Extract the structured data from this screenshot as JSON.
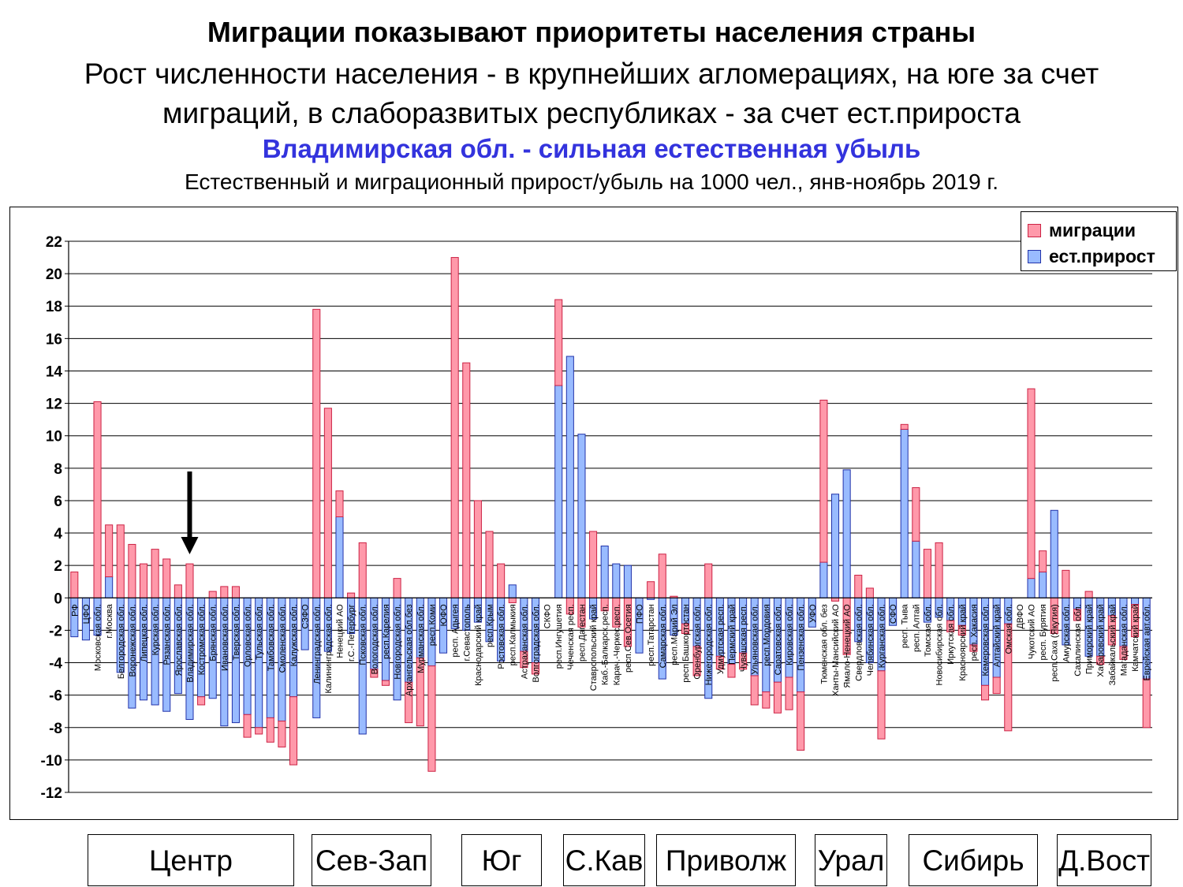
{
  "header": {
    "title": "Миграции показывают приоритеты населения страны",
    "subtitle_line1": "Рост численности населения - в крупнейших агломерациях, на юге за счет",
    "subtitle_line2": "миграций, в слаборазвитых республиках - за счет ест.прироста",
    "highlight": "Владимирская обл. - сильная естественная убыль",
    "caption": "Естественный и миграционный прирост/убыль на 1000 чел., янв-ноябрь 2019 г."
  },
  "colors": {
    "migration": "#ff99aa",
    "natural": "#99bbff",
    "migration_stroke": "#cc2244",
    "natural_stroke": "#2233aa",
    "highlight_text": "#3333dd"
  },
  "regions": [
    "Центр",
    "Сев-Зап",
    "Юг",
    "С.Кав",
    "Приволж",
    "Урал",
    "Сибирь",
    "Д.Вост"
  ],
  "chart_data": {
    "type": "bar",
    "stacked": true,
    "title": "Естественный и миграционный прирост/убыль на 1000 чел., янв-ноябрь 2019 г.",
    "ylim": [
      -12,
      22
    ],
    "yticks": [
      22,
      20,
      18,
      16,
      14,
      12,
      10,
      8,
      6,
      4,
      2,
      0,
      -2,
      -4,
      -6,
      -8,
      -10,
      -12
    ],
    "grid": true,
    "legend_position": "top-right",
    "annotation": "arrow pointing at Владимирская обл.",
    "categories": [
      "РФ",
      "ЦФО",
      "Московская обл.",
      "г.Москва",
      "Белгородская обл.",
      "Воронежская обл.",
      "Липецкая обл.",
      "Курская обл.",
      "Рязанская обл.",
      "Ярославская обл.",
      "Владимирская обл.",
      "Костромская обл.",
      "Брянская обл.",
      "Ивановская обл.",
      "Тверская обл.",
      "Орловская обл.",
      "Тульская обл.",
      "Тамбовская обл.",
      "Смоленская обл.",
      "Калужская обл.",
      "СЗФО",
      "Ленинградская обл.",
      "Калининградская обл.",
      "Ненецкий АО",
      "г.С.-Петербург",
      "Псковская обл.",
      "Вологодская обл.",
      "респ.Карелия",
      "Новгородская обл.",
      "Архангельская обл.без",
      "Мурманская обл.",
      "респ.Коми",
      "ЮФО",
      "респ. Адыгея",
      "г.Севастополь",
      "Краснодарский край",
      "респ.Крым",
      "Ростовская обл.",
      "респ.Калмыкия",
      "Астраханская обл.",
      "Волгоградская обл.",
      "СКФО",
      "респ.Ингушетия",
      "Чеченская респ.",
      "респ.Дагестан",
      "Ставропольский край",
      "Каб.-Балкарск.респ.",
      "Карач.-Черкес.респ.",
      "респ.Сев.Осетия",
      "ПФО",
      "респ.Татарстан",
      "Самарская обл.",
      "респ.Марий Эл",
      "респ.Башкортостан",
      "Оренбургская обл.",
      "Нижегородская обл.",
      "Удмуртская респ.",
      "Пермский край",
      "Чувашская респ.",
      "Ульяновская обл.",
      "респ.Мордовия",
      "Саратовская обл.",
      "Кировская обл.",
      "Пензенская обл.",
      "УФО",
      "Тюменская обл. без",
      "Ханты-Мансийский АО",
      "Ямало-Ненецкий АО",
      "Свердловская обл.",
      "Челябинская обл.",
      "Курганская обл.",
      "СФО",
      "респ. Тыва",
      "респ. Алтай",
      "Томская обл.",
      "Новосибирская обл.",
      "Иркутская обл.",
      "Красноярский край",
      "респ. Хакасия",
      "Кемеровская обл.",
      "Алтайский край",
      "Омская обл.",
      "ДВФО",
      "Чукотский АО",
      "респ. Бурятия",
      "респ.Саха (Якутия)",
      "Амурская обл.",
      "Сахалинская обл.",
      "Приморский край",
      "Хабаровский край",
      "Забайкальский край",
      "Магаданская обл.",
      "Камчатский край",
      "Еврейская авт.обл."
    ],
    "series": [
      {
        "name": "миграции",
        "values": [
          1.6,
          0.0,
          12.1,
          3.2,
          4.5,
          3.3,
          2.1,
          3.0,
          2.4,
          0.8,
          2.1,
          -0.5,
          0.4,
          0.7,
          0.7,
          -1.4,
          -0.4,
          -1.5,
          -1.6,
          -4.2,
          0.0,
          17.8,
          11.7,
          1.6,
          0.3,
          3.4,
          -0.5,
          -0.3,
          1.2,
          -2.5,
          -4.2,
          -6.5,
          0.0,
          21.0,
          14.5,
          6.0,
          4.1,
          2.1,
          -0.3,
          -1.0,
          -0.7,
          0.0,
          5.3,
          -1.0,
          -1.8,
          4.1,
          -0.8,
          -1.8,
          -3.0,
          0.0,
          1.0,
          2.7,
          0.1,
          -0.6,
          -1.8,
          2.1,
          -0.8,
          -0.8,
          -1.0,
          -1.8,
          -1.0,
          -1.9,
          -2.0,
          -3.6,
          0.0,
          10.0,
          -0.2,
          -3.5,
          1.4,
          0.6,
          -4.2,
          0.0,
          0.3,
          3.3,
          3.0,
          3.4,
          -0.7,
          -0.6,
          -0.4,
          -0.9,
          -1.0,
          -6.6,
          0.0,
          11.7,
          1.3,
          -2.2,
          1.7,
          -0.7,
          0.4,
          -0.5,
          -1.8,
          -0.8,
          -2.0,
          -3.0
        ]
      },
      {
        "name": "ест.прирост",
        "values": [
          -2.4,
          -2.6,
          -2.3,
          1.3,
          -4.6,
          -6.8,
          -6.3,
          -6.6,
          -7.0,
          -5.9,
          -7.5,
          -6.1,
          -6.2,
          -7.9,
          -7.7,
          -7.2,
          -8.0,
          -7.4,
          -7.6,
          -6.1,
          -3.2,
          -7.4,
          -3.3,
          5.0,
          -2.2,
          -8.4,
          -4.4,
          -5.1,
          -6.3,
          -5.2,
          -3.7,
          -4.2,
          -3.4,
          -1.9,
          -2.0,
          -1.5,
          -2.7,
          -3.9,
          0.8,
          -3.3,
          -4.0,
          0.0,
          13.1,
          14.9,
          10.1,
          -1.3,
          3.2,
          2.1,
          2.0,
          -3.4,
          -0.1,
          -5.0,
          -2.3,
          -1.6,
          -3.0,
          -6.2,
          -3.6,
          -4.1,
          -3.4,
          -4.8,
          -5.8,
          -5.2,
          -4.9,
          -5.8,
          -1.8,
          2.2,
          6.4,
          7.9,
          -2.7,
          -4.0,
          -4.5,
          -1.7,
          10.4,
          3.5,
          -1.5,
          -1.2,
          -1.4,
          -1.7,
          -2.9,
          -5.4,
          -4.9,
          -1.6,
          0.0,
          1.2,
          1.6,
          5.4,
          -2.9,
          -0.7,
          -3.6,
          -3.6,
          -1.1,
          -3.0,
          -0.4,
          -5.0
        ]
      }
    ]
  }
}
